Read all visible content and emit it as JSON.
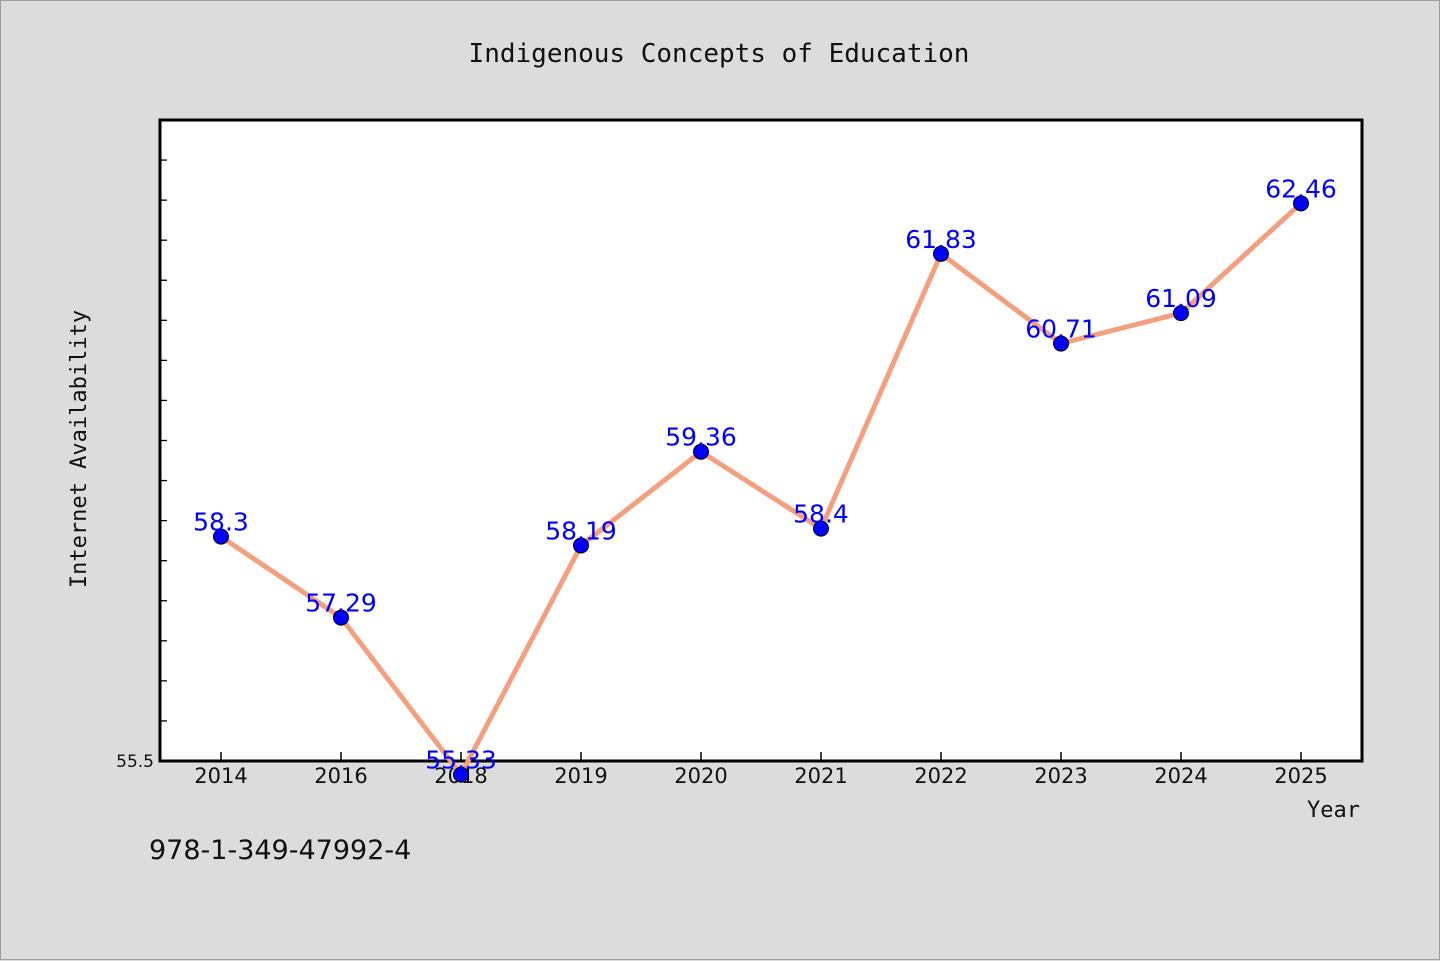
{
  "footnote": "978-1-349-47992-4",
  "chart_data": {
    "type": "line",
    "title": "Indigenous Concepts of Education",
    "xlabel": "Year",
    "ylabel": "Internet Availability",
    "categories": [
      "2014",
      "2016",
      "2018",
      "2019",
      "2020",
      "2021",
      "2022",
      "2023",
      "2024",
      "2025"
    ],
    "series": [
      {
        "values": [
          58.3,
          57.29,
          55.33,
          58.19,
          59.36,
          58.4,
          61.83,
          60.71,
          61.09,
          62.46
        ],
        "line_color": "#f4a07e",
        "marker_color": "#0000ff"
      }
    ],
    "data_labels": [
      "58.3",
      "57.29",
      "55.33",
      "58.19",
      "59.36",
      "58.4",
      "61.83",
      "60.71",
      "61.09",
      "62.46"
    ],
    "y_tick_labels": [
      "55.5"
    ],
    "ylim": [
      55.5,
      63.5
    ],
    "y_minor_tick_step": 0.5,
    "grid": false,
    "legend": "none",
    "plot_background": "#ffffff"
  }
}
